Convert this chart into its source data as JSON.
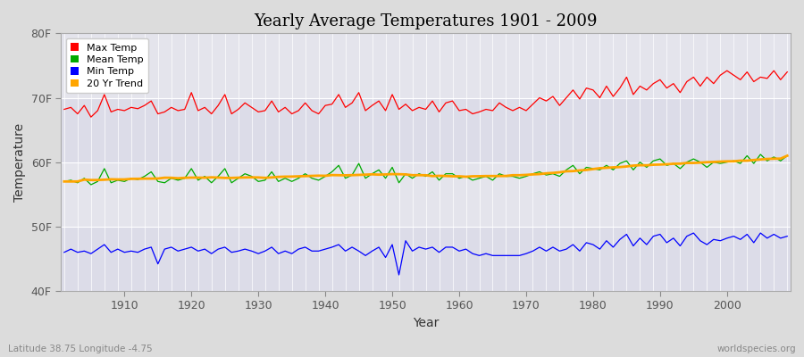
{
  "title": "Yearly Average Temperatures 1901 - 2009",
  "xlabel": "Year",
  "ylabel": "Temperature",
  "start_year": 1901,
  "end_year": 2009,
  "ylim": [
    40,
    80
  ],
  "yticks": [
    40,
    50,
    60,
    70,
    80
  ],
  "ytick_labels": [
    "40F",
    "50F",
    "60F",
    "70F",
    "80F"
  ],
  "xticks": [
    1910,
    1920,
    1930,
    1940,
    1950,
    1960,
    1970,
    1980,
    1990,
    2000
  ],
  "bg_color": "#dcdcdc",
  "plot_bg_color": "#e0e0e8",
  "grid_color": "#ffffff",
  "max_temp_color": "#ff0000",
  "mean_temp_color": "#00aa00",
  "min_temp_color": "#0000ff",
  "trend_color": "#ffa500",
  "legend_labels": [
    "Max Temp",
    "Mean Temp",
    "Min Temp",
    "20 Yr Trend"
  ],
  "bottom_left_text": "Latitude 38.75 Longitude -4.75",
  "bottom_right_text": "worldspecies.org",
  "max_temps": [
    68.2,
    68.5,
    67.5,
    68.8,
    67.0,
    68.0,
    70.5,
    67.8,
    68.2,
    68.0,
    68.5,
    68.3,
    68.8,
    69.5,
    67.5,
    67.8,
    68.5,
    68.0,
    68.2,
    70.8,
    68.0,
    68.5,
    67.5,
    68.8,
    70.5,
    67.5,
    68.2,
    69.2,
    68.5,
    67.8,
    68.0,
    69.5,
    67.8,
    68.5,
    67.5,
    68.0,
    69.2,
    68.0,
    67.5,
    68.8,
    69.0,
    70.5,
    68.5,
    69.2,
    70.8,
    68.0,
    68.8,
    69.5,
    68.0,
    70.5,
    68.2,
    69.0,
    68.0,
    68.5,
    68.2,
    69.5,
    67.8,
    69.2,
    69.5,
    68.0,
    68.2,
    67.5,
    67.8,
    68.2,
    68.0,
    69.2,
    68.5,
    68.0,
    68.5,
    68.0,
    69.0,
    70.0,
    69.5,
    70.2,
    68.8,
    70.0,
    71.2,
    69.8,
    71.5,
    71.2,
    70.0,
    71.8,
    70.2,
    71.5,
    73.2,
    70.5,
    71.8,
    71.2,
    72.2,
    72.8,
    71.5,
    72.2,
    70.8,
    72.5,
    73.2,
    71.8,
    73.2,
    72.2,
    73.5,
    74.2,
    73.5,
    72.8,
    74.0,
    72.5,
    73.2,
    73.0,
    74.2,
    72.8,
    74.0
  ],
  "mean_temps": [
    57.0,
    57.2,
    56.8,
    57.5,
    56.5,
    57.0,
    59.0,
    56.8,
    57.2,
    57.0,
    57.5,
    57.3,
    57.8,
    58.5,
    57.0,
    56.8,
    57.5,
    57.2,
    57.5,
    59.0,
    57.2,
    57.8,
    56.8,
    57.8,
    59.0,
    56.8,
    57.5,
    58.2,
    57.8,
    57.0,
    57.2,
    58.5,
    57.0,
    57.5,
    57.0,
    57.5,
    58.2,
    57.5,
    57.2,
    57.8,
    58.5,
    59.5,
    57.5,
    58.0,
    59.8,
    57.5,
    58.2,
    58.8,
    57.5,
    59.2,
    56.8,
    58.2,
    57.5,
    58.2,
    57.8,
    58.5,
    57.2,
    58.2,
    58.2,
    57.5,
    57.8,
    57.2,
    57.5,
    57.8,
    57.2,
    58.2,
    57.8,
    57.8,
    57.5,
    57.8,
    58.2,
    58.5,
    58.0,
    58.2,
    57.8,
    58.8,
    59.5,
    58.2,
    59.2,
    59.0,
    58.8,
    59.5,
    58.8,
    59.8,
    60.2,
    58.8,
    60.0,
    59.2,
    60.2,
    60.5,
    59.5,
    59.8,
    59.0,
    60.0,
    60.5,
    60.0,
    59.2,
    60.0,
    59.8,
    60.0,
    60.2,
    59.8,
    61.0,
    59.8,
    61.2,
    60.2,
    60.8,
    60.2,
    61.0
  ],
  "min_temps": [
    46.0,
    46.5,
    46.0,
    46.2,
    45.8,
    46.5,
    47.2,
    46.0,
    46.5,
    46.0,
    46.2,
    46.0,
    46.5,
    46.8,
    44.2,
    46.5,
    46.8,
    46.2,
    46.5,
    46.8,
    46.2,
    46.5,
    45.8,
    46.5,
    46.8,
    46.0,
    46.2,
    46.5,
    46.2,
    45.8,
    46.2,
    46.8,
    45.8,
    46.2,
    45.8,
    46.5,
    46.8,
    46.2,
    46.2,
    46.5,
    46.8,
    47.2,
    46.2,
    46.8,
    46.2,
    45.5,
    46.2,
    46.8,
    45.2,
    47.2,
    42.5,
    47.8,
    46.2,
    46.8,
    46.5,
    46.8,
    46.0,
    46.8,
    46.8,
    46.2,
    46.5,
    45.8,
    45.5,
    45.8,
    45.5,
    45.5,
    45.5,
    45.5,
    45.5,
    45.8,
    46.2,
    46.8,
    46.2,
    46.8,
    46.2,
    46.5,
    47.2,
    46.2,
    47.5,
    47.2,
    46.5,
    47.8,
    46.8,
    48.0,
    48.8,
    47.0,
    48.2,
    47.2,
    48.5,
    48.8,
    47.5,
    48.2,
    47.0,
    48.5,
    49.0,
    47.8,
    47.2,
    48.0,
    47.8,
    48.2,
    48.5,
    48.0,
    48.8,
    47.5,
    49.0,
    48.2,
    48.8,
    48.2,
    48.5
  ]
}
